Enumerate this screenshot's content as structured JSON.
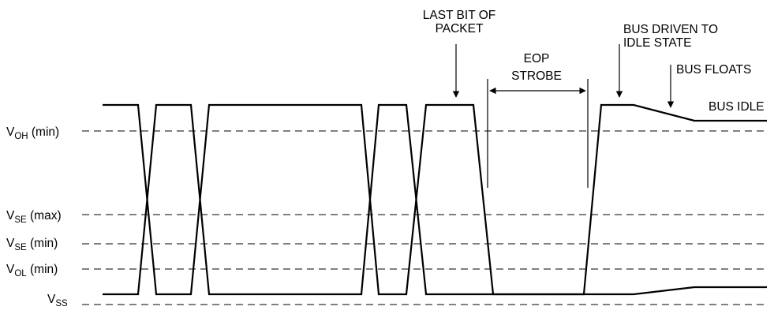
{
  "levels": [
    {
      "main": "V",
      "sub": "OH",
      "suffix": " (min)"
    },
    {
      "main": "V",
      "sub": "SE",
      "suffix": " (max)"
    },
    {
      "main": "V",
      "sub": "SE",
      "suffix": " (min)"
    },
    {
      "main": "V",
      "sub": "OL",
      "suffix": " (min)"
    },
    {
      "main": "V",
      "sub": "SS",
      "suffix": ""
    }
  ],
  "annotations": {
    "last_bit_line1": "LAST BIT OF",
    "last_bit_line2": "PACKET",
    "eop_line1": "EOP",
    "eop_line2": "STROBE",
    "bus_driven_line1": "BUS DRIVEN TO",
    "bus_driven_line2": "IDLE STATE",
    "bus_floats": "BUS FLOATS",
    "bus_idle": "BUS IDLE"
  }
}
